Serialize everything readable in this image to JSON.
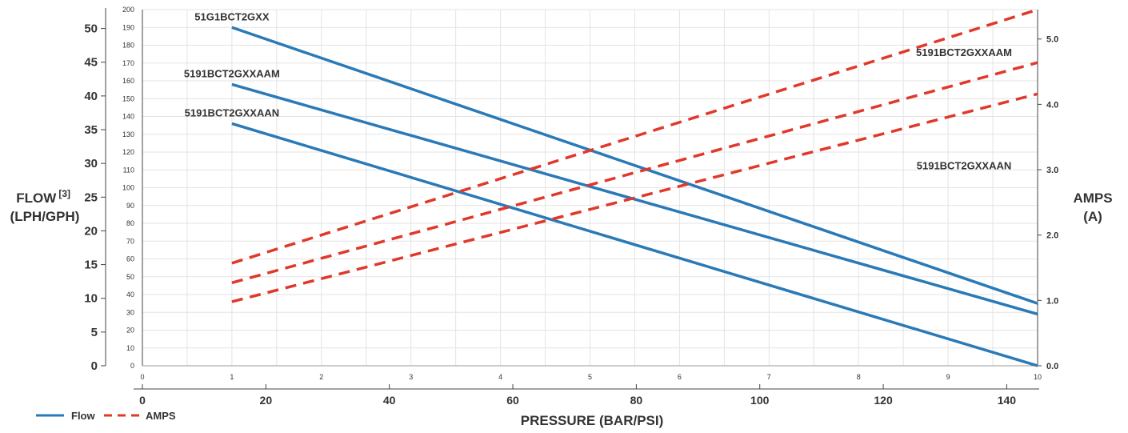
{
  "chart_data": {
    "type": "line",
    "x_axes": {
      "bar": {
        "ticks": [
          "0",
          "1",
          "2",
          "3",
          "4",
          "5",
          "6",
          "7",
          "8",
          "9",
          "10"
        ],
        "range": [
          0,
          10
        ]
      },
      "psi": {
        "ticks": [
          "0",
          "20",
          "40",
          "60",
          "80",
          "100",
          "120",
          "140"
        ],
        "range": [
          0,
          145
        ],
        "label": "PRESSURE (BAR/PSI)"
      }
    },
    "y_axes": {
      "flow_lph": {
        "ticks": [
          "0",
          "10",
          "20",
          "30",
          "40",
          "50",
          "60",
          "70",
          "80",
          "90",
          "100",
          "110",
          "120",
          "130",
          "140",
          "150",
          "160",
          "170",
          "180",
          "190",
          "200"
        ],
        "range": [
          0,
          200
        ]
      },
      "flow_gph": {
        "ticks": [
          "0",
          "5",
          "10",
          "15",
          "20",
          "25",
          "30",
          "35",
          "40",
          "45",
          "50"
        ],
        "range": [
          0,
          52.8
        ]
      },
      "flow_label_main": "FLOW",
      "flow_label_sup": "[3]",
      "flow_label_units": "(LPH/GPH)",
      "amps": {
        "ticks": [
          "0.0",
          "1.0",
          "2.0",
          "3.0",
          "4.0",
          "5.0"
        ],
        "range": [
          0,
          5.45
        ],
        "label_line1": "AMPS",
        "label_line2": "(A)"
      }
    },
    "grid": true,
    "series": [
      {
        "label": "51G1BCT2GXX",
        "kind": "flow",
        "x": [
          1,
          10
        ],
        "y": [
          190,
          35
        ],
        "color": "#2a7ab8"
      },
      {
        "label": "5191BCT2GXXAAM",
        "kind": "flow",
        "x": [
          1,
          10
        ],
        "y": [
          158,
          29
        ],
        "color": "#2a7ab8"
      },
      {
        "label": "5191BCT2GXXAAN",
        "kind": "flow",
        "x": [
          1,
          10
        ],
        "y": [
          136,
          0
        ],
        "color": "#2a7ab8"
      },
      {
        "label": "51G1BCT2GXX",
        "kind": "amps",
        "x": [
          1,
          10
        ],
        "y": [
          1.57,
          5.45
        ],
        "color": "#e0392b"
      },
      {
        "label": "5191BCT2GXXAAM",
        "kind": "amps",
        "x": [
          1,
          10
        ],
        "y": [
          1.27,
          4.64
        ],
        "color": "#e0392b"
      },
      {
        "label": "5191BCT2GXXAAN",
        "kind": "amps",
        "x": [
          1,
          10
        ],
        "y": [
          0.98,
          4.16
        ],
        "color": "#e0392b"
      }
    ],
    "legend": [
      {
        "name": "Flow",
        "style": "solid",
        "color": "#2a7ab8"
      },
      {
        "name": "AMPS",
        "style": "dashed",
        "color": "#e0392b"
      }
    ],
    "legend_position": "bottom-left"
  }
}
